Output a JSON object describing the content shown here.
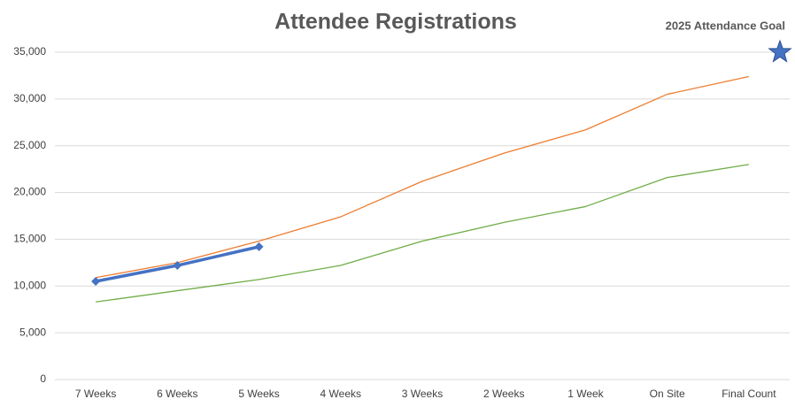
{
  "chart_data": {
    "type": "line",
    "title": "Attendee Registrations",
    "categories": [
      "7 Weeks",
      "6 Weeks",
      "5 Weeks",
      "4 Weeks",
      "3 Weeks",
      "2 Weeks",
      "1 Week",
      "On Site",
      "Final Count"
    ],
    "series": [
      {
        "color": "#ed7d31",
        "values": [
          10900,
          12500,
          14800,
          17400,
          21200,
          24200,
          26700,
          30500,
          32400
        ]
      },
      {
        "color": "#70ad47",
        "values": [
          8300,
          9500,
          10700,
          12200,
          14800,
          16800,
          18500,
          21600,
          23000
        ]
      },
      {
        "color": "#4472c4",
        "values": [
          10500,
          12200,
          14200,
          null,
          null,
          null,
          null,
          null,
          null
        ],
        "markers": true
      }
    ],
    "goal": {
      "label": "2025 Attendance Goal",
      "value": 35000,
      "color": "#4472c4"
    },
    "ylim": [
      0,
      35000
    ],
    "yticks": [
      0,
      {
        "value": 5000,
        "label": "5,000"
      },
      {
        "value": 10000,
        "label": "10,000"
      },
      {
        "value": 15000,
        "label": "15,000"
      },
      {
        "value": 20000,
        "label": "20,000"
      },
      {
        "value": 25000,
        "label": "25,000"
      },
      {
        "value": 30000,
        "label": "30,000"
      },
      {
        "value": 35000,
        "label": "35,000"
      }
    ],
    "grid": true
  }
}
